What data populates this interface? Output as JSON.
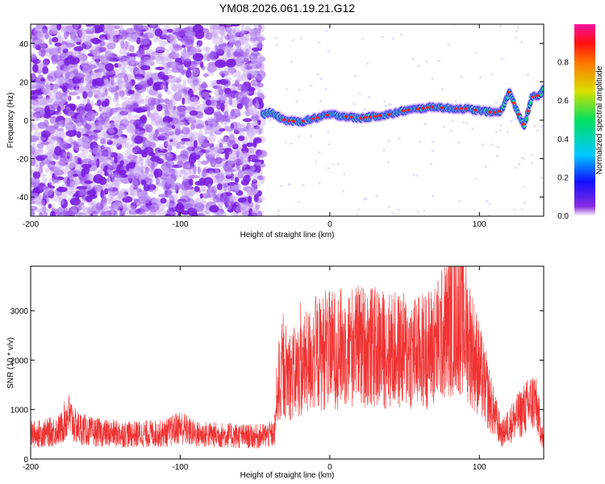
{
  "title": "YM08.2026.061.19.21.G12",
  "chart_data": [
    {
      "type": "heatmap",
      "xlabel": "Height of straight line (km)",
      "ylabel": "Frequency (Hz)",
      "xlim": [
        -200,
        143
      ],
      "ylim": [
        -50,
        50
      ],
      "xticks": [
        -200,
        -100,
        0,
        100
      ],
      "yticks": [
        -40,
        -20,
        0,
        20,
        40
      ],
      "colorbar": {
        "label": "Normalized spectral amplitude",
        "range": [
          0,
          1
        ],
        "ticks": [
          "0.0",
          "0.2",
          "0.4",
          "0.6",
          "0.8"
        ]
      },
      "noise_region_x": [
        -200,
        -45
      ],
      "ridge": {
        "x": [
          -45,
          -40,
          -35,
          -30,
          -20,
          -10,
          0,
          10,
          20,
          30,
          40,
          50,
          60,
          70,
          80,
          90,
          100,
          110,
          115,
          120,
          125,
          130,
          135,
          140,
          143
        ],
        "y": [
          3,
          4,
          2,
          0,
          -1,
          1,
          3,
          2,
          1,
          2,
          3,
          5,
          6,
          7,
          6,
          6,
          5,
          4,
          5,
          15,
          5,
          -3,
          12,
          13,
          16
        ]
      },
      "colors": {
        "noise": "#7a1fe0",
        "ridge_low": "#1f1fff",
        "ridge_mid": "#00e07a",
        "ridge_high": "#ff2020"
      }
    },
    {
      "type": "line",
      "xlabel": "Height of straight line (km)",
      "ylabel": "SNR (10 * v/v)",
      "xlim": [
        -200,
        143
      ],
      "ylim": [
        0,
        3900
      ],
      "xticks": [
        -200,
        -100,
        0,
        100
      ],
      "yticks": [
        0,
        1000,
        2000,
        3000
      ],
      "envelope": {
        "x": [
          -200,
          -190,
          -180,
          -175,
          -170,
          -160,
          -150,
          -130,
          -110,
          -100,
          -90,
          -70,
          -50,
          -37,
          -35,
          -30,
          -25,
          -20,
          -10,
          0,
          10,
          20,
          40,
          60,
          70,
          80,
          85,
          90,
          100,
          110,
          115,
          120,
          130,
          137,
          140,
          143
        ],
        "y": [
          500,
          520,
          600,
          900,
          650,
          550,
          520,
          500,
          520,
          650,
          500,
          480,
          450,
          500,
          1500,
          1800,
          1700,
          1800,
          2100,
          2200,
          2250,
          2300,
          2200,
          2150,
          2300,
          2700,
          2900,
          2700,
          1800,
          900,
          500,
          700,
          1000,
          1200,
          800,
          300
        ]
      },
      "color": "#f03232"
    }
  ]
}
